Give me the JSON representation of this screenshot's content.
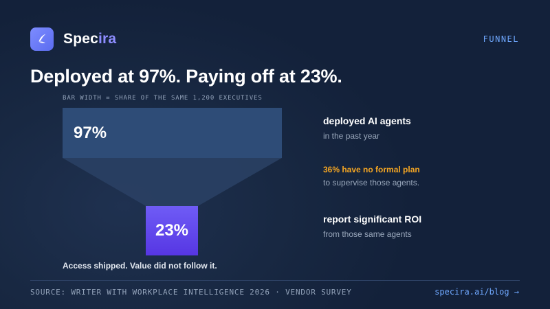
{
  "brand": {
    "name_part1": "Spec",
    "name_part2": "ira",
    "logo_icon": "bird-icon",
    "accent_color": "#8e8dff"
  },
  "tag": "FUNNEL",
  "headline": "Deployed at 97%. Paying off at 23%.",
  "caption": "BAR WIDTH = SHARE OF THE SAME 1,200 EXECUTIVES",
  "funnel": {
    "top": {
      "label": "97%",
      "value": 97,
      "color": "#2e4c77"
    },
    "bottom": {
      "label": "23%",
      "value": 23,
      "color": "#5b3ff0"
    },
    "note": "Access shipped. Value did not follow it."
  },
  "stats": [
    {
      "title": "deployed AI agents",
      "sub": "in the past year"
    },
    {
      "title": "36% have no formal plan",
      "sub": "to supervise those agents.",
      "title_color": "#f5a623"
    },
    {
      "title": "report significant ROI",
      "sub": "from those same agents"
    }
  ],
  "footer": {
    "source": "SOURCE: WRITER WITH WORKPLACE INTELLIGENCE 2026 · VENDOR SURVEY",
    "link": "specira.ai/blog →"
  }
}
